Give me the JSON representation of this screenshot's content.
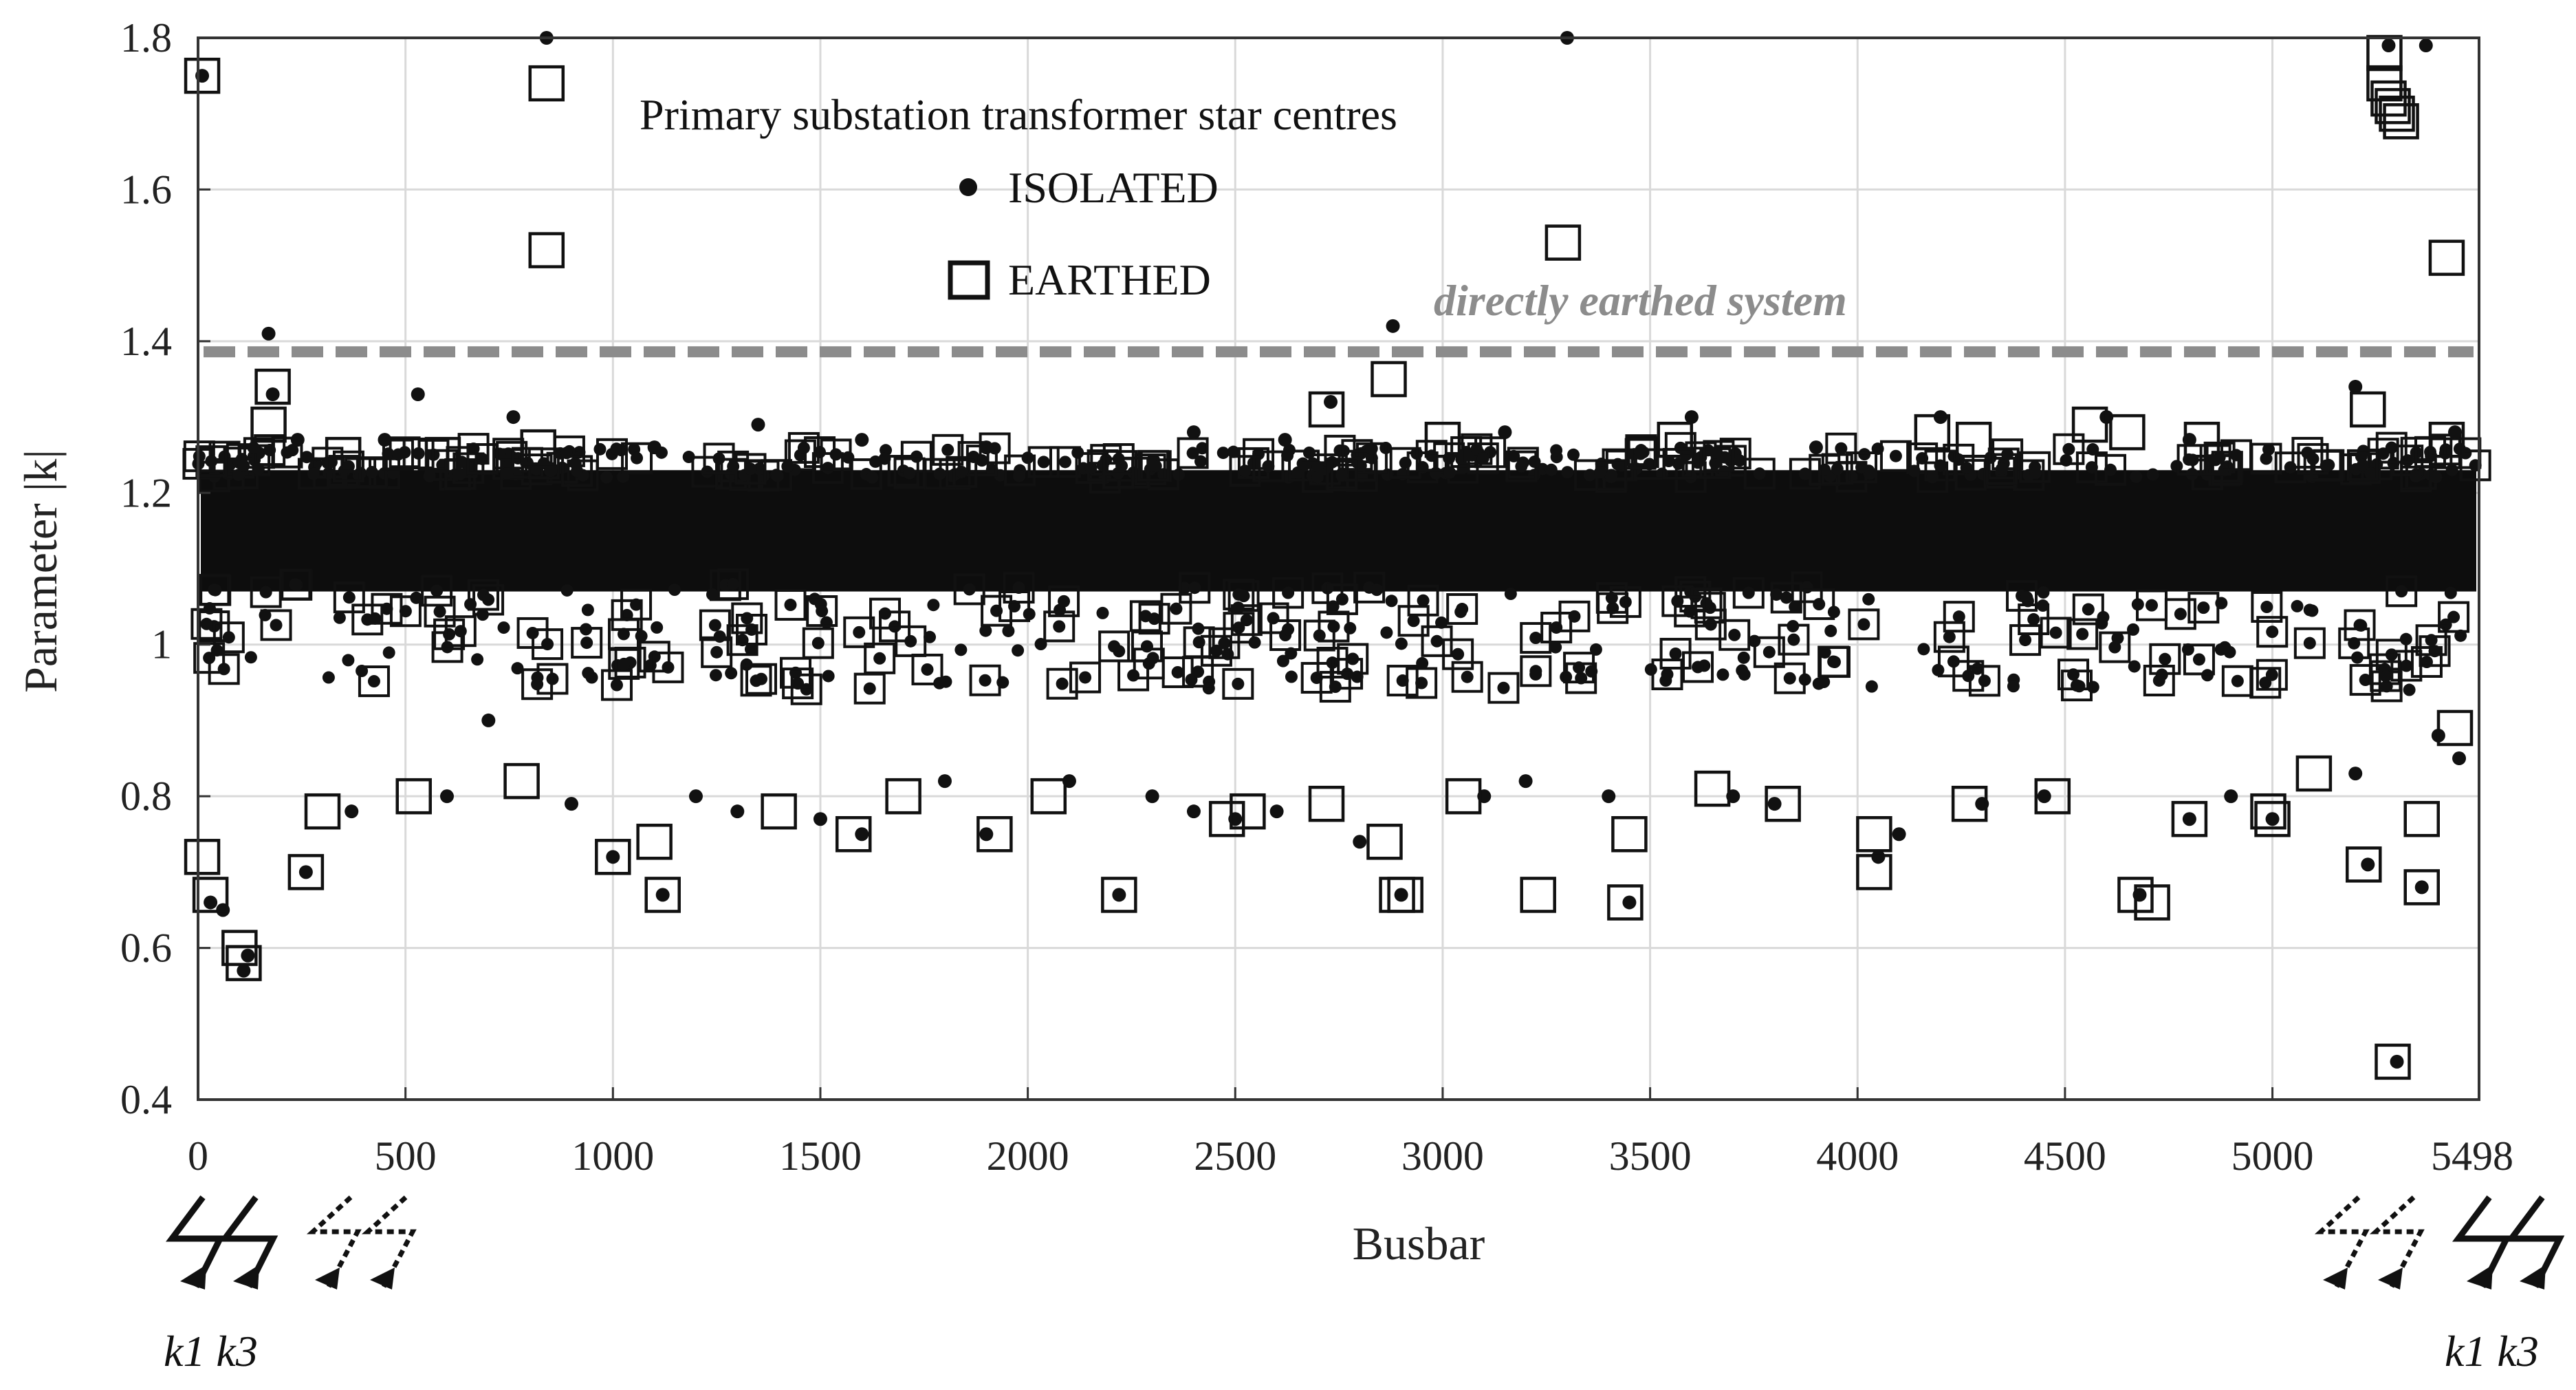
{
  "chart_data": {
    "type": "scatter",
    "title": "Primary substation transformer star centres",
    "xlabel": "Busbar",
    "ylabel": "Parameter |k|",
    "xlim": [
      0,
      5498
    ],
    "ylim": [
      0.4,
      1.8
    ],
    "xticks": [
      0,
      500,
      1000,
      1500,
      2000,
      2500,
      3000,
      3500,
      4000,
      4500,
      5000,
      5498
    ],
    "xtick_labels": [
      "0",
      "500",
      "1000",
      "1500",
      "2000",
      "2500",
      "3000",
      "3500",
      "4000",
      "4500",
      "5000",
      "5498"
    ],
    "yticks": [
      0.4,
      0.6,
      0.8,
      1.0,
      1.2,
      1.4,
      1.6,
      1.8
    ],
    "ytick_labels": [
      "0.4",
      "0.6",
      "0.8",
      "1",
      "1.2",
      "1.4",
      "1.6",
      "1.8"
    ],
    "grid": true,
    "legend_position": "top-center",
    "series": [
      {
        "name": "ISOLATED",
        "marker": "dot",
        "color": "#111111",
        "points": [
          [
            10,
            1.75
          ],
          [
            110,
            0.57
          ],
          [
            120,
            0.59
          ],
          [
            170,
            1.41
          ],
          [
            180,
            1.33
          ],
          [
            530,
            1.33
          ],
          [
            840,
            1.8
          ],
          [
            850,
            1.23
          ],
          [
            1120,
            0.67
          ],
          [
            2220,
            0.67
          ],
          [
            2730,
            1.32
          ],
          [
            2880,
            1.42
          ],
          [
            2900,
            0.67
          ],
          [
            3300,
            1.8
          ],
          [
            3450,
            0.66
          ],
          [
            4680,
            0.67
          ],
          [
            5230,
            0.71
          ],
          [
            5280,
            1.79
          ],
          [
            5300,
            0.45
          ],
          [
            5360,
            0.68
          ],
          [
            5370,
            1.79
          ],
          [
            30,
            0.66
          ],
          [
            60,
            0.65
          ],
          [
            260,
            0.7
          ],
          [
            370,
            0.78
          ],
          [
            600,
            0.8
          ],
          [
            700,
            0.9
          ],
          [
            900,
            0.79
          ],
          [
            1000,
            0.72
          ],
          [
            1200,
            0.8
          ],
          [
            1300,
            0.78
          ],
          [
            1500,
            0.77
          ],
          [
            1600,
            0.75
          ],
          [
            1800,
            0.82
          ],
          [
            1900,
            0.75
          ],
          [
            2100,
            0.82
          ],
          [
            2300,
            0.8
          ],
          [
            2400,
            0.78
          ],
          [
            2500,
            0.77
          ],
          [
            2600,
            0.78
          ],
          [
            2800,
            0.74
          ],
          [
            3100,
            0.8
          ],
          [
            3200,
            0.82
          ],
          [
            3400,
            0.8
          ],
          [
            3700,
            0.8
          ],
          [
            3800,
            0.79
          ],
          [
            4050,
            0.72
          ],
          [
            4100,
            0.75
          ],
          [
            4300,
            0.79
          ],
          [
            4450,
            0.8
          ],
          [
            4800,
            0.77
          ],
          [
            4900,
            0.8
          ],
          [
            5000,
            0.77
          ],
          [
            5200,
            0.83
          ],
          [
            5400,
            0.88
          ],
          [
            5450,
            0.85
          ],
          [
            240,
            1.27
          ],
          [
            450,
            1.27
          ],
          [
            760,
            1.3
          ],
          [
            1100,
            1.26
          ],
          [
            1350,
            1.29
          ],
          [
            1600,
            1.27
          ],
          [
            1900,
            1.26
          ],
          [
            2400,
            1.28
          ],
          [
            2620,
            1.27
          ],
          [
            3150,
            1.28
          ],
          [
            3600,
            1.3
          ],
          [
            3900,
            1.26
          ],
          [
            4200,
            1.3
          ],
          [
            4600,
            1.3
          ],
          [
            4800,
            1.27
          ],
          [
            5200,
            1.34
          ],
          [
            5440,
            1.28
          ]
        ]
      },
      {
        "name": "EARTHED",
        "marker": "square",
        "color": "#111111",
        "points": [
          [
            10,
            1.75
          ],
          [
            840,
            1.74
          ],
          [
            840,
            1.52
          ],
          [
            3290,
            1.53
          ],
          [
            5270,
            1.78
          ],
          [
            5270,
            1.74
          ],
          [
            5280,
            1.72
          ],
          [
            5290,
            1.71
          ],
          [
            5300,
            1.7
          ],
          [
            5310,
            1.69
          ],
          [
            5420,
            1.51
          ],
          [
            180,
            1.34
          ],
          [
            170,
            1.29
          ],
          [
            2870,
            1.35
          ],
          [
            2720,
            1.31
          ],
          [
            5230,
            1.31
          ],
          [
            110,
            0.58
          ],
          [
            100,
            0.6
          ],
          [
            10,
            0.72
          ],
          [
            30,
            0.67
          ],
          [
            260,
            0.7
          ],
          [
            1000,
            0.72
          ],
          [
            1120,
            0.67
          ],
          [
            2220,
            0.67
          ],
          [
            2890,
            0.67
          ],
          [
            2910,
            0.67
          ],
          [
            2860,
            0.74
          ],
          [
            3230,
            0.67
          ],
          [
            3440,
            0.66
          ],
          [
            4040,
            0.7
          ],
          [
            4040,
            0.75
          ],
          [
            4670,
            0.67
          ],
          [
            4710,
            0.66
          ],
          [
            5220,
            0.71
          ],
          [
            5290,
            0.45
          ],
          [
            5360,
            0.68
          ],
          [
            5360,
            0.77
          ],
          [
            1920,
            0.75
          ],
          [
            1580,
            0.75
          ],
          [
            3450,
            0.75
          ],
          [
            4800,
            0.77
          ],
          [
            5000,
            0.77
          ],
          [
            4990,
            0.78
          ],
          [
            300,
            0.78
          ],
          [
            520,
            0.8
          ],
          [
            780,
            0.82
          ],
          [
            1100,
            0.74
          ],
          [
            1400,
            0.78
          ],
          [
            1700,
            0.8
          ],
          [
            2050,
            0.8
          ],
          [
            2480,
            0.77
          ],
          [
            2530,
            0.78
          ],
          [
            2720,
            0.79
          ],
          [
            3050,
            0.8
          ],
          [
            3650,
            0.81
          ],
          [
            3820,
            0.79
          ],
          [
            4270,
            0.79
          ],
          [
            4470,
            0.8
          ],
          [
            5100,
            0.83
          ],
          [
            5440,
            0.89
          ],
          [
            820,
            1.26
          ],
          [
            350,
            1.25
          ],
          [
            590,
            1.25
          ],
          [
            3000,
            1.27
          ],
          [
            3560,
            1.27
          ],
          [
            4180,
            1.28
          ],
          [
            4280,
            1.27
          ],
          [
            4560,
            1.29
          ],
          [
            4650,
            1.28
          ],
          [
            4830,
            1.27
          ],
          [
            5420,
            1.27
          ]
        ]
      }
    ],
    "reference_lines": [
      {
        "label": "directly earthed system",
        "y": 1.386,
        "color": "#8c8c8c",
        "style": "dashed"
      }
    ],
    "annotations": [
      {
        "text": "k1 k3",
        "position": "bottom-left"
      },
      {
        "text": "k1 k3",
        "position": "bottom-right"
      }
    ]
  }
}
